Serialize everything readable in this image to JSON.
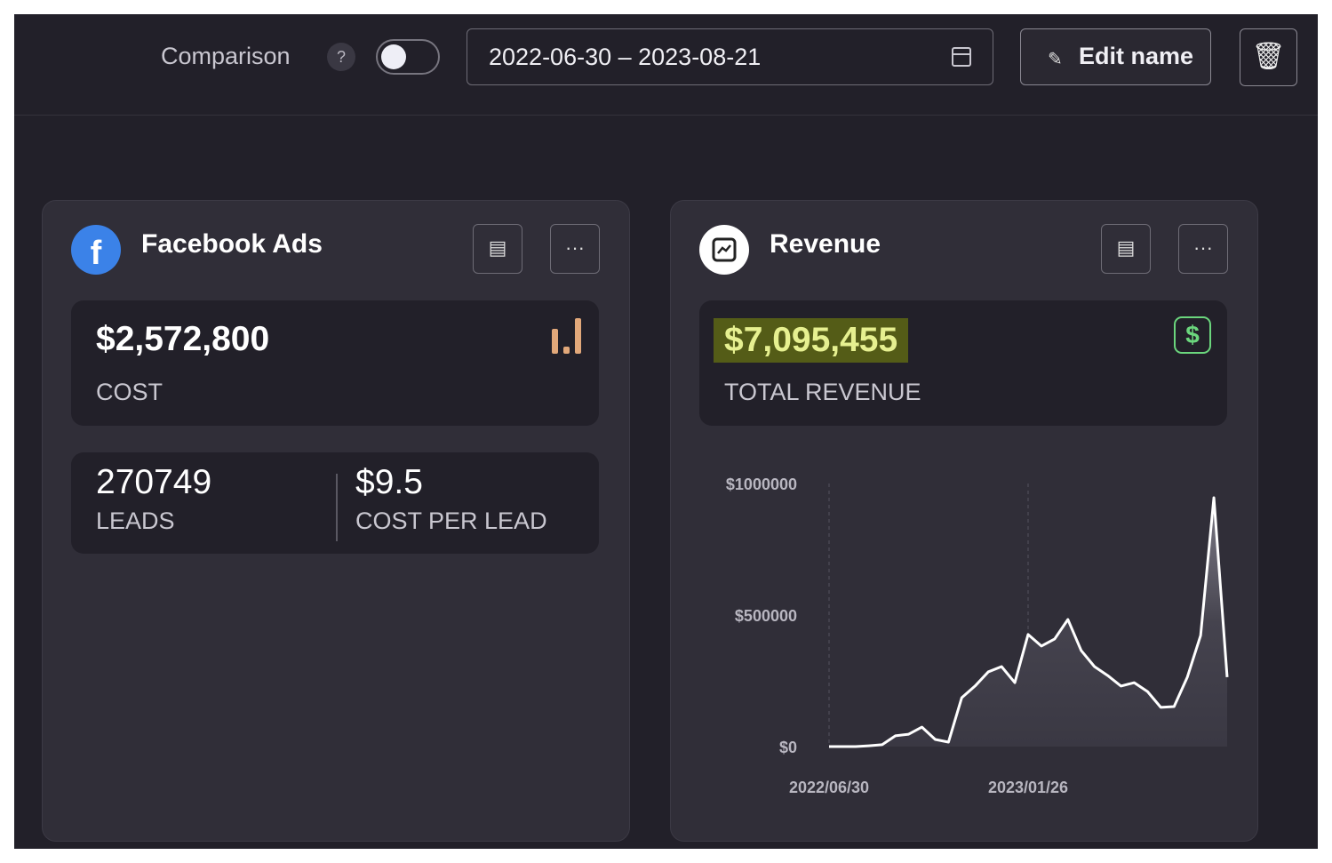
{
  "topbar": {
    "comparison_label": "Comparison",
    "help": "?",
    "comparison_on": false,
    "date_range": "2022-06-30 – 2023-08-21",
    "edit_name": "Edit name"
  },
  "facebook": {
    "title": "Facebook Ads",
    "cost": "$2,572,800",
    "cost_label": "COST",
    "leads": "270749",
    "leads_label": "LEADS",
    "cpl": "$9.5",
    "cpl_label": "COST PER LEAD"
  },
  "revenue": {
    "title": "Revenue",
    "total": "$7,095,455",
    "total_label": "TOTAL REVENUE"
  },
  "colors": {
    "accent_highlight": "#545c17",
    "dollar_icon": "#6bd67d",
    "bars_icon": "#e2a87a"
  },
  "chart_data": {
    "type": "area",
    "title": "",
    "ylim": [
      0,
      1000000
    ],
    "y_ticks": [
      "$0",
      "$500000",
      "$1000000"
    ],
    "x_ticks": [
      "2022/06/30",
      "2023/01/26"
    ],
    "x_tick_indices": [
      0,
      15
    ],
    "values": [
      0,
      0,
      0,
      3000,
      7000,
      41000,
      47000,
      74000,
      27000,
      17000,
      186000,
      230000,
      284000,
      304000,
      243000,
      426000,
      382000,
      409000,
      483000,
      365000,
      304000,
      270000,
      230000,
      243000,
      209000,
      149000,
      152000,
      264000,
      422000,
      946000,
      264000
    ]
  }
}
